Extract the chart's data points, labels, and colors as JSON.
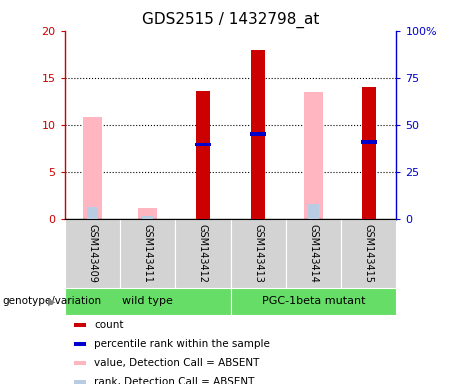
{
  "title": "GDS2515 / 1432798_at",
  "samples": [
    "GSM143409",
    "GSM143411",
    "GSM143412",
    "GSM143413",
    "GSM143414",
    "GSM143415"
  ],
  "count_values": [
    null,
    null,
    13.6,
    18.0,
    null,
    14.0
  ],
  "percentile_rank_values": [
    null,
    null,
    7.9,
    9.0,
    null,
    8.2
  ],
  "absent_value_values": [
    10.8,
    1.2,
    null,
    null,
    13.5,
    null
  ],
  "absent_rank_values": [
    6.3,
    1.7,
    null,
    null,
    8.0,
    null
  ],
  "ylim_left": [
    0,
    20
  ],
  "ylim_right": [
    0,
    100
  ],
  "yticks_left": [
    0,
    5,
    10,
    15,
    20
  ],
  "ytick_labels_left": [
    "0",
    "5",
    "10",
    "15",
    "20"
  ],
  "yticks_right": [
    0,
    25,
    50,
    75,
    100
  ],
  "ytick_labels_right": [
    "0",
    "25",
    "50",
    "75",
    "100%"
  ],
  "color_count": "#CC0000",
  "color_percentile": "#0000CC",
  "color_absent_value": "#FFB6C1",
  "color_absent_rank": "#B8CCE4",
  "count_bar_width": 0.25,
  "absent_value_bar_width": 0.35,
  "absent_rank_bar_width": 0.2,
  "percentile_bar_width": 0.3,
  "bg_color_xtick": "#d3d3d3",
  "bg_color_group": "#66DD66",
  "title_fontsize": 11,
  "tick_fontsize": 8,
  "label_fontsize": 8,
  "legend_fontsize": 7.5,
  "group_label_fontsize": 7.5,
  "wt_label": "wild type",
  "pgc_label": "PGC-1beta mutant",
  "genotype_label": "genotype/variation"
}
